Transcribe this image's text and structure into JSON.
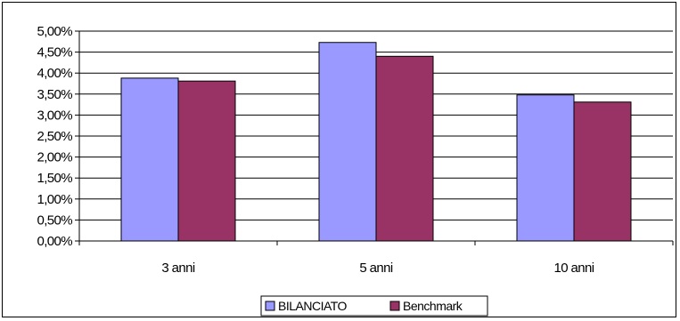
{
  "chart_data": {
    "type": "bar",
    "categories": [
      "3 anni",
      "5 anni",
      "10 anni"
    ],
    "series": [
      {
        "name": "BILANCIATO",
        "values": [
          3.88,
          4.73,
          3.48
        ],
        "color": "#9999ff"
      },
      {
        "name": "Benchmark",
        "values": [
          3.81,
          4.4,
          3.31
        ],
        "color": "#993366"
      }
    ],
    "ylim": [
      0,
      5
    ],
    "ytick_step": 0.5,
    "ytick_labels": [
      "0,00%",
      "0,50%",
      "1,00%",
      "1,50%",
      "2,00%",
      "2,50%",
      "3,00%",
      "3,50%",
      "4,00%",
      "4,50%",
      "5,00%"
    ],
    "grid": true,
    "legend_position": "bottom",
    "title": "",
    "xlabel": "",
    "ylabel": ""
  }
}
